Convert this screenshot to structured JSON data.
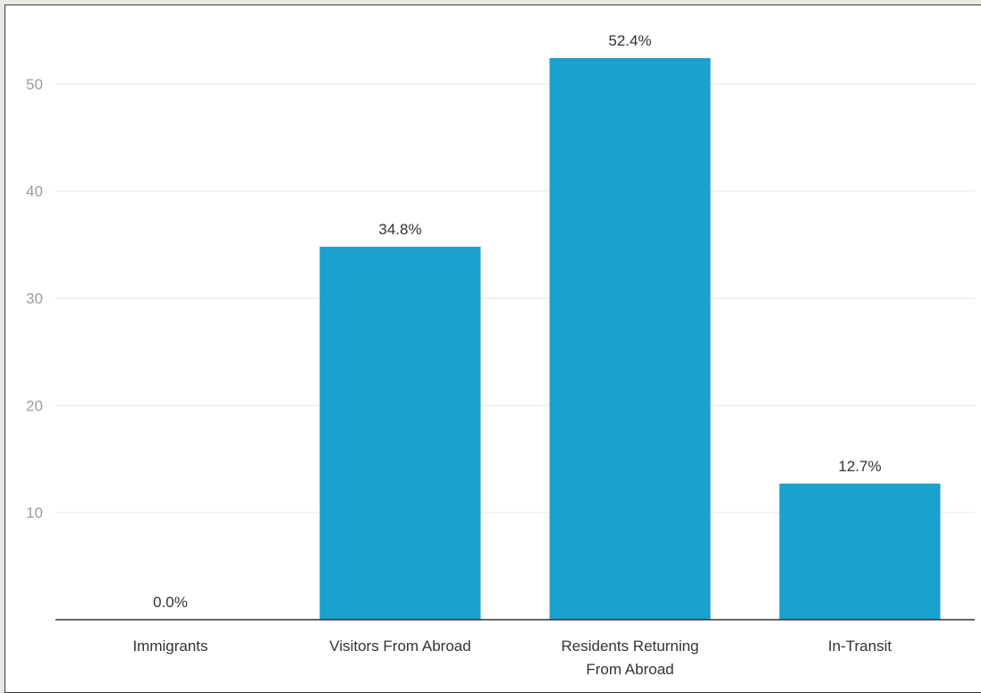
{
  "chart_data": {
    "type": "bar",
    "categories": [
      [
        "Immigrants"
      ],
      [
        "Visitors From Abroad"
      ],
      [
        "Residents Returning",
        "From Abroad"
      ],
      [
        "In-Transit"
      ]
    ],
    "values": [
      0.0,
      34.8,
      52.4,
      12.7
    ],
    "data_labels": [
      "0.0%",
      "34.8%",
      "52.4%",
      "12.7%"
    ],
    "yticks": [
      10,
      20,
      30,
      40,
      50
    ],
    "ytick_labels": [
      "10",
      "20",
      "30",
      "40",
      "50"
    ],
    "ylim": [
      0,
      57.5
    ],
    "grid": true,
    "colors": {
      "bar": "#1aa1cd",
      "grid": "#e6e6e6",
      "axis": "#333333",
      "ytick_text": "#9c9c9c"
    }
  }
}
